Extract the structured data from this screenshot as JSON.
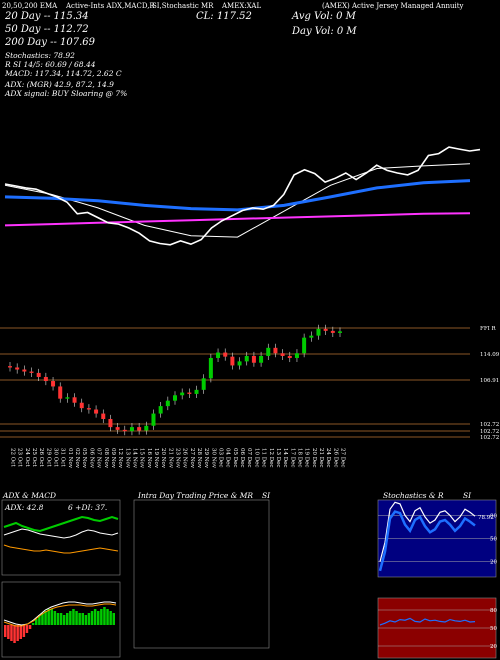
{
  "header": {
    "ema_label": "20,50,200 EMA",
    "ema_text": "Active-Ints ADX,MACD,R",
    "si_text": "SI,Stochastic MR",
    "symbol": "AMEX:XAL",
    "title_text": "(AMEX) Active Jersey Managed Annuity",
    "close_label": "CL: 117.52",
    "avg_vol": "Avg Vol: 0  M",
    "day_vol": "Day Vol: 0   M"
  },
  "info": {
    "ma20": "20  Day -- 115.34",
    "ma50": "50  Day -- 112.72",
    "ma200": "200  Day -- 107.69",
    "stoch": "Stochastics: 78.92",
    "rsi": "R                SI 14/5: 60.69 / 68.44",
    "macd": "MACD: 117.34, 114.72, 2.62  C",
    "adx": "ADX:                                    (MGR) 42.9, 87.2, 14.9",
    "adx_signal": "ADX  signal:                                  BUY Sloaring @ 7%"
  },
  "levels": [
    "FFI R",
    "114.09",
    "106.91",
    "102.72",
    "102.72",
    "102.72"
  ],
  "dates": [
    "22 Oct",
    "23 Oct",
    "24 Oct",
    "25 Oct",
    "26 Oct",
    "29 Oct",
    "30 Oct",
    "31 Oct",
    "01 Nov",
    "02 Nov",
    "05 Nov",
    "06 Nov",
    "07 Nov",
    "08 Nov",
    "09 Nov",
    "12 Nov",
    "13 Nov",
    "14 Nov",
    "15 Nov",
    "16 Nov",
    "19 Nov",
    "20 Nov",
    "21 Nov",
    "23 Nov",
    "26 Nov",
    "27 Nov",
    "28 Nov",
    "29 Nov",
    "30 Nov",
    "03 Dec",
    "04 Dec",
    "05 Dec",
    "06 Dec",
    "07 Dec",
    "10 Dec",
    "11 Dec",
    "12 Dec",
    "13 Dec",
    "14 Dec",
    "17 Dec",
    "18 Dec",
    "19 Dec",
    "20 Dec",
    "21 Dec",
    "24 Dec",
    "26 Dec",
    "27 Dec"
  ],
  "panels": {
    "adx_title": "ADX  & MACD",
    "adx_value": "ADX: 42.8",
    "adx_right": "6    +DI: 37.",
    "intra_title": "Intra  Day Trading Price  & MR",
    "intra_si": "SI",
    "stoch_title": "Stochastics & R",
    "stoch_si": "SI",
    "stoch_ticks": [
      "80",
      "50",
      "20"
    ],
    "rsi_ticks": [
      "80",
      "50",
      "20"
    ],
    "stoch_value": "78.92"
  },
  "colors": {
    "bull": "#00cc00",
    "bear": "#ff3333",
    "ema20": "#ffffff",
    "ema50": "#1e6fff",
    "ema200": "#ff33ff",
    "level": "#b87333",
    "stoch_bg": "#000080",
    "rsi_bg": "#8b0000"
  },
  "chart_data": [
    {
      "type": "line",
      "name": "price-overlay",
      "x": [
        "22 Oct",
        "29 Oct",
        "05 Nov",
        "12 Nov",
        "19 Nov",
        "26 Nov",
        "03 Dec",
        "10 Dec",
        "17 Dec",
        "24 Dec",
        "27 Dec"
      ],
      "series": [
        {
          "name": "20  Day",
          "values": [
            112.0,
            110.6,
            108.5,
            105.8,
            104.2,
            104.0,
            108.0,
            112.0,
            114.6,
            115.0,
            115.34
          ]
        },
        {
          "name": "50  Day",
          "values": [
            110.2,
            110.0,
            109.6,
            108.9,
            108.4,
            108.2,
            108.9,
            110.2,
            111.6,
            112.4,
            112.72
          ]
        },
        {
          "name": "200  Day",
          "values": [
            105.8,
            106.0,
            106.2,
            106.4,
            106.6,
            106.8,
            107.0,
            107.2,
            107.4,
            107.6,
            107.69
          ]
        }
      ]
    },
    {
      "type": "candlestick",
      "name": "daily-price",
      "x": [
        "22 Oct",
        "23 Oct",
        "24 Oct",
        "25 Oct",
        "26 Oct",
        "29 Oct",
        "30 Oct",
        "31 Oct",
        "01 Nov",
        "02 Nov",
        "05 Nov",
        "06 Nov",
        "07 Nov",
        "08 Nov",
        "09 Nov",
        "12 Nov",
        "13 Nov",
        "14 Nov",
        "15 Nov",
        "16 Nov",
        "19 Nov",
        "20 Nov",
        "21 Nov",
        "23 Nov",
        "26 Nov",
        "27 Nov",
        "28 Nov",
        "29 Nov",
        "30 Nov",
        "03 Dec",
        "04 Dec",
        "05 Dec",
        "06 Dec",
        "07 Dec",
        "10 Dec",
        "11 Dec",
        "12 Dec",
        "13 Dec",
        "14 Dec",
        "17 Dec",
        "18 Dec",
        "19 Dec",
        "20 Dec",
        "21 Dec",
        "24 Dec",
        "26 Dec",
        "27 Dec"
      ],
      "open": [
        112.4,
        112.2,
        111.9,
        111.6,
        111.4,
        110.8,
        110.2,
        109.4,
        107.6,
        107.8,
        107.0,
        106.2,
        106.0,
        105.4,
        104.6,
        103.4,
        103.0,
        102.8,
        103.4,
        102.9,
        103.6,
        105.4,
        106.5,
        107.3,
        108.1,
        108.5,
        108.3,
        108.9,
        110.6,
        113.6,
        114.4,
        113.8,
        112.5,
        113.1,
        113.9,
        112.9,
        113.9,
        115.1,
        114.3,
        113.9,
        113.6,
        114.3,
        116.6,
        116.9,
        117.9,
        117.6,
        117.3
      ],
      "close": [
        112.2,
        111.9,
        111.6,
        111.4,
        110.8,
        110.2,
        109.4,
        107.6,
        107.8,
        107.0,
        106.2,
        106.0,
        105.4,
        104.6,
        103.4,
        103.0,
        102.8,
        103.4,
        102.9,
        103.6,
        105.4,
        106.5,
        107.3,
        108.1,
        108.5,
        108.3,
        108.9,
        110.6,
        113.6,
        114.4,
        113.8,
        112.5,
        113.1,
        113.9,
        112.9,
        113.9,
        115.1,
        114.3,
        113.9,
        113.6,
        114.3,
        116.6,
        116.9,
        117.9,
        117.6,
        117.3,
        117.52
      ],
      "ylim": [
        101.5,
        119.5
      ]
    },
    {
      "type": "line",
      "name": "stochastics",
      "series": [
        {
          "name": "Stochastics",
          "values": [
            20,
            45,
            88,
            97,
            95,
            80,
            72,
            86,
            90,
            78,
            70,
            74,
            84,
            86,
            80,
            72,
            78,
            88,
            84,
            78.92
          ]
        }
      ],
      "ylim": [
        0,
        100
      ]
    },
    {
      "type": "line",
      "name": "rsi",
      "series": [
        {
          "name": "SI",
          "values": [
            55,
            58,
            62,
            60,
            64,
            63,
            66,
            61,
            60,
            65,
            62,
            63,
            61,
            60,
            64,
            62,
            61,
            63,
            60,
            60.69
          ]
        }
      ],
      "ylim": [
        0,
        100
      ]
    }
  ]
}
